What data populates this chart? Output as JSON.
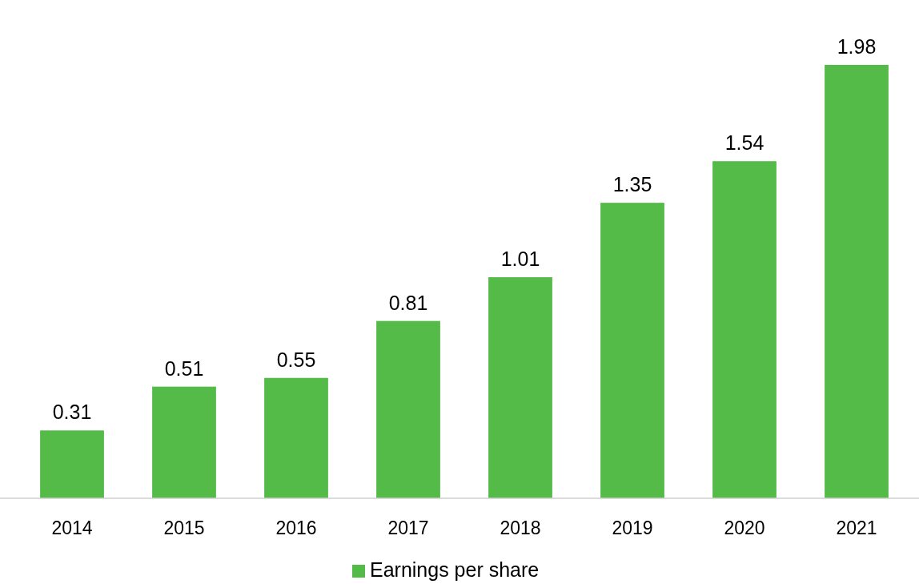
{
  "chart_data": {
    "type": "bar",
    "categories": [
      "2014",
      "2015",
      "2016",
      "2017",
      "2018",
      "2019",
      "2020",
      "2021"
    ],
    "series": [
      {
        "name": "Earnings per share",
        "color": "#55bb48",
        "values": [
          0.31,
          0.51,
          0.55,
          0.81,
          1.01,
          1.35,
          1.54,
          1.98
        ]
      }
    ],
    "data_labels": true,
    "legend": "bottom"
  }
}
